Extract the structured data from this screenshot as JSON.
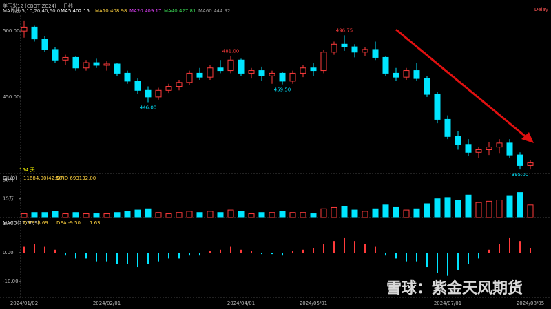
{
  "chart_data": {
    "type": "candlestick",
    "title": "美玉米12 (CBOT ZC24)",
    "period": "日线",
    "delay": "Delay",
    "ma_legend": {
      "title": "MA均线(5,10,20,40,60,0)",
      "items": [
        {
          "text": "MA5 402.15",
          "color": "#ffffff"
        },
        {
          "text": "MA10 408.98",
          "color": "#ffd23f"
        },
        {
          "text": "MA20 409.17",
          "color": "#e040fb"
        },
        {
          "text": "MA40 427.81",
          "color": "#39d353"
        },
        {
          "text": "MA60 444.92",
          "color": "#9e9e9e"
        }
      ]
    },
    "bars_count": "154 天",
    "up_color": "#ff3b3b",
    "down_color": "#00e5ff",
    "ylim": [
      393,
      510
    ],
    "yticks": [
      {
        "value": 500,
        "label": "500.00"
      },
      {
        "value": 450,
        "label": "450.00"
      }
    ],
    "categories": [
      "2024/01/02",
      null,
      null,
      null,
      null,
      null,
      null,
      null,
      "2024/02/01",
      null,
      null,
      null,
      null,
      null,
      null,
      null,
      null,
      null,
      null,
      null,
      null,
      "2024/04/01",
      null,
      null,
      null,
      null,
      null,
      null,
      "2024/05/01",
      null,
      null,
      null,
      null,
      null,
      null,
      null,
      null,
      null,
      null,
      null,
      null,
      "2024/07/01",
      null,
      null,
      null,
      null,
      null,
      null,
      null,
      "2024/08/05"
    ],
    "ohlc": [
      [
        500,
        508,
        495,
        503
      ],
      [
        503,
        504,
        492,
        494
      ],
      [
        494,
        496,
        484,
        486
      ],
      [
        486,
        488,
        476,
        478
      ],
      [
        478,
        482,
        474,
        480
      ],
      [
        480,
        481,
        470,
        472
      ],
      [
        472,
        478,
        470,
        476
      ],
      [
        476,
        479,
        472,
        474
      ],
      [
        474,
        477,
        470,
        475
      ],
      [
        475,
        476,
        466,
        468
      ],
      [
        468,
        470,
        460,
        462
      ],
      [
        462,
        464,
        452,
        455
      ],
      [
        455,
        458,
        446,
        450
      ],
      [
        450,
        457,
        448,
        455
      ],
      [
        455,
        460,
        453,
        458
      ],
      [
        458,
        463,
        455,
        461
      ],
      [
        461,
        470,
        459,
        468
      ],
      [
        468,
        472,
        463,
        465
      ],
      [
        465,
        474,
        463,
        472
      ],
      [
        472,
        478,
        468,
        470
      ],
      [
        470,
        481,
        468,
        478
      ],
      [
        478,
        479,
        466,
        468
      ],
      [
        468,
        472,
        464,
        470
      ],
      [
        470,
        473,
        462,
        466
      ],
      [
        466,
        470,
        460,
        468
      ],
      [
        468,
        469,
        459.5,
        462
      ],
      [
        462,
        470,
        460,
        468
      ],
      [
        468,
        474,
        465,
        472
      ],
      [
        472,
        476,
        466,
        470
      ],
      [
        470,
        486,
        468,
        484
      ],
      [
        484,
        492,
        482,
        490
      ],
      [
        490,
        496.75,
        485,
        488
      ],
      [
        488,
        490,
        480,
        484
      ],
      [
        484,
        488,
        481,
        486
      ],
      [
        486,
        492,
        478,
        480
      ],
      [
        480,
        481,
        466,
        468
      ],
      [
        468,
        472,
        462,
        465
      ],
      [
        465,
        472,
        463,
        470
      ],
      [
        470,
        476,
        462,
        464
      ],
      [
        464,
        466,
        450,
        452
      ],
      [
        452,
        454,
        430,
        433
      ],
      [
        433,
        436,
        418,
        420
      ],
      [
        420,
        424,
        410,
        414
      ],
      [
        414,
        418,
        405,
        408
      ],
      [
        408,
        412,
        404,
        410
      ],
      [
        410,
        416,
        406,
        412
      ],
      [
        412,
        418,
        407,
        415
      ],
      [
        415,
        418,
        404,
        406
      ],
      [
        406,
        408,
        395,
        398
      ],
      [
        398,
        402,
        395,
        400
      ]
    ],
    "extreme_labels": [
      {
        "candle": 31,
        "label": "496.75",
        "at": "high"
      },
      {
        "candle": 20,
        "label": "481.00",
        "at": "high"
      },
      {
        "candle": 25,
        "label": "459.50",
        "at": "low"
      },
      {
        "candle": 12,
        "label": "446.00",
        "at": "low"
      },
      {
        "candle": 48,
        "label": "395.00",
        "at": "low"
      }
    ],
    "volume": {
      "legend": [
        "CJL(0)",
        "11684.00(42:58)",
        "OPID 693132.00"
      ],
      "ylim": [
        0,
        33
      ],
      "yticks": [
        {
          "value": 30,
          "label": "30万"
        },
        {
          "value": 15,
          "label": "15万"
        }
      ],
      "values": [
        3,
        4,
        4,
        5,
        3,
        4,
        3,
        3,
        3,
        4,
        5,
        6,
        7,
        4,
        3,
        4,
        5,
        4,
        5,
        4,
        6,
        5,
        3,
        4,
        4,
        5,
        4,
        4,
        3,
        7,
        8,
        9,
        6,
        5,
        7,
        10,
        8,
        6,
        7,
        11,
        15,
        16,
        14,
        18,
        12,
        13,
        14,
        17,
        20,
        10
      ]
    },
    "macd": {
      "legend": [
        "MACD(12,26,9)",
        "DIFF -8.69",
        "DEA -9.50",
        "1.63"
      ],
      "ylim": [
        -15.2,
        11.4
      ],
      "yticks": [
        {
          "value": 10,
          "label": "10.00"
        },
        {
          "value": 0,
          "label": "0.00"
        },
        {
          "value": -10,
          "label": "-10.00"
        }
      ],
      "values": [
        2,
        3,
        2,
        1,
        -1,
        -2,
        -2,
        -3,
        -3,
        -4,
        -4,
        -5,
        -4,
        -3,
        -2,
        -2,
        -1,
        -1,
        0.5,
        1,
        2,
        1,
        0.5,
        -0.5,
        -0.5,
        -1,
        0.5,
        1,
        1.5,
        3,
        4,
        5,
        4,
        3,
        2,
        -1,
        -2,
        -3,
        -3,
        -5,
        -7,
        -8,
        -6,
        -4,
        -2,
        1,
        3,
        5,
        4,
        1.63
      ]
    },
    "watermark": "雪球：紫金天风期货"
  }
}
